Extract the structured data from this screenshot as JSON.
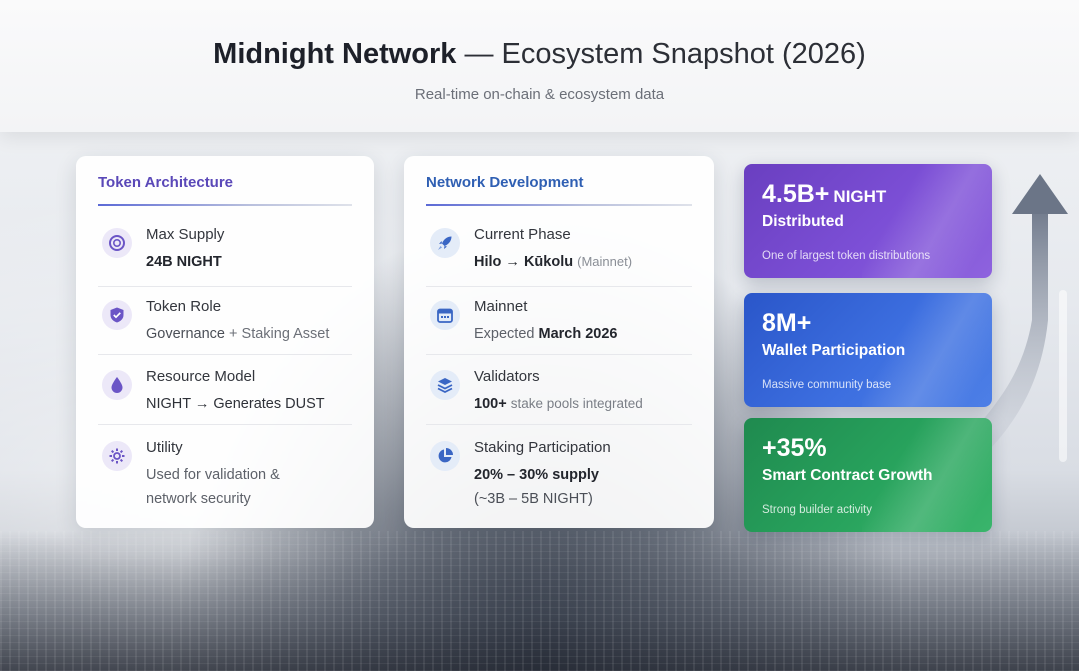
{
  "header": {
    "title_bold": "Midnight Network",
    "title_rest": "— Ecosystem Snapshot (2026)",
    "subtitle": "Real-time on-chain & ecosystem data"
  },
  "token_card": {
    "title": "Token Architecture",
    "rows": [
      {
        "icon": "coin-icon",
        "label": "Max Supply",
        "value": "24B NIGHT"
      },
      {
        "icon": "shield-check-icon",
        "label": "Token Role",
        "value_bold": "Governance",
        "value_rest": "+ Staking Asset"
      },
      {
        "icon": "droplet-icon",
        "label": "Resource Model",
        "value": "NIGHT → Generates DUST"
      },
      {
        "icon": "gear-network-icon",
        "label": "Utility",
        "value_line1": "Used for validation &",
        "value_line2": "network security"
      }
    ]
  },
  "network_card": {
    "title": "Network Development",
    "rows": [
      {
        "icon": "rocket-icon",
        "label": "Current Phase",
        "value_bold": "Hilo → Kūkolu",
        "value_muted": "(Mainnet)"
      },
      {
        "icon": "calendar-icon",
        "label": "Mainnet",
        "value_rest": "Expected",
        "value_bold": "March 2026"
      },
      {
        "icon": "layers-icon",
        "label": "Validators",
        "value_bold": "100+",
        "value_rest": "stake pools integrated"
      },
      {
        "icon": "pie-chart-icon",
        "label": "Staking Participation",
        "value_bold": "20% – 30% supply",
        "value_line2": "(~3B – 5B NIGHT)"
      }
    ]
  },
  "stats": [
    {
      "big": "4.5B+",
      "unit": "NIGHT",
      "title": "Distributed",
      "note": "One of largest token distributions",
      "color": "#6a3fc0"
    },
    {
      "big": "8M+",
      "title": "Wallet Participation",
      "note": "Massive community base",
      "color": "#2a56c9"
    },
    {
      "big": "+35%",
      "title": "Smart Contract Growth",
      "note": "Strong builder activity",
      "color": "#1f8a4f"
    }
  ]
}
